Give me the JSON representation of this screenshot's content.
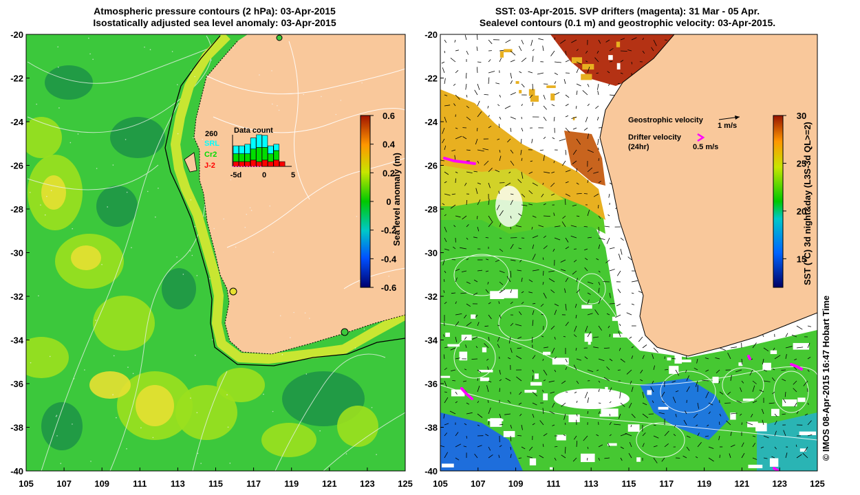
{
  "left_panel": {
    "title_line1": "Atmospheric pressure contours (2 hPa): 03-Apr-2015",
    "title_line2": "Isostatically adjusted sea level anomaly: 03-Apr-2015",
    "colorbar": {
      "label": "Sea level anomaly (m)",
      "ticks": [
        "0.6",
        "0.4",
        "0.2",
        "0",
        "-0.2",
        "-0.4",
        "-0.6"
      ],
      "range": [
        -0.6,
        0.6
      ]
    },
    "data_count": {
      "title": "Data count",
      "max_label": "260",
      "legend": [
        {
          "name": "SRL",
          "color": "#00ffff"
        },
        {
          "name": "Cr2",
          "color": "#00dd00"
        },
        {
          "name": "J-2",
          "color": "#ff0000"
        }
      ],
      "x_ticks": [
        "-5d",
        "0",
        "5"
      ],
      "bars": [
        {
          "day": -4,
          "j2": 0.15,
          "cr2": 0.25,
          "srl": 0.25
        },
        {
          "day": -3,
          "j2": 0.15,
          "cr2": 0.25,
          "srl": 0.25
        },
        {
          "day": -2,
          "j2": 0.15,
          "cr2": 0.25,
          "srl": 0.3
        },
        {
          "day": -1,
          "j2": 0.2,
          "cr2": 0.35,
          "srl": 0.35
        },
        {
          "day": 0,
          "j2": 0.15,
          "cr2": 0.45,
          "srl": 0.4
        },
        {
          "day": 1,
          "j2": 0.2,
          "cr2": 0.4,
          "srl": 0.38
        },
        {
          "day": 2,
          "j2": 0.15,
          "cr2": 0.25,
          "srl": 0.25
        },
        {
          "day": 3,
          "j2": 0.2,
          "cr2": 0.3,
          "srl": 0.2
        },
        {
          "day": 4,
          "j2": 0.15,
          "cr2": 0.0,
          "srl": 0.0
        }
      ]
    }
  },
  "right_panel": {
    "title_line1": "SST: 03-Apr-2015. SVP drifters (magenta): 31 Mar - 05 Apr.",
    "title_line2": "Sealevel contours (0.1 m) and geostrophic velocity: 03-Apr-2015.",
    "colorbar": {
      "label": "SST (°C) 3d night&day (L3S-3d QL>=2)",
      "ticks": [
        "30",
        "25",
        "20",
        "15"
      ],
      "range": [
        12,
        30
      ]
    },
    "legend": {
      "geo_label": "Geostrophic velocity",
      "geo_scale": "1 m/s",
      "drifter_label": "Drifter velocity",
      "drifter_sub": "(24hr)",
      "drifter_scale": "0.5 m/s"
    }
  },
  "axes": {
    "y_ticks": [
      "-20",
      "-22",
      "-24",
      "-26",
      "-28",
      "-30",
      "-32",
      "-34",
      "-36",
      "-38",
      "-40"
    ],
    "x_ticks": [
      "105",
      "107",
      "109",
      "111",
      "113",
      "115",
      "117",
      "119",
      "121",
      "123",
      "125"
    ]
  },
  "credit": "© IMOS 08-Apr-2015 16:47 Hobart Time",
  "colors": {
    "land": "#f9c89b",
    "sla_base": "#3cc83c",
    "sla_high": "#9be01e",
    "sla_peak": "#e6e032",
    "sla_low": "#1e9646",
    "sst_warm": "#e8b020",
    "sst_mid": "#32c832",
    "sst_cool": "#1e78dc",
    "sst_hot": "#b43214",
    "drifter": "#ff00ff"
  }
}
